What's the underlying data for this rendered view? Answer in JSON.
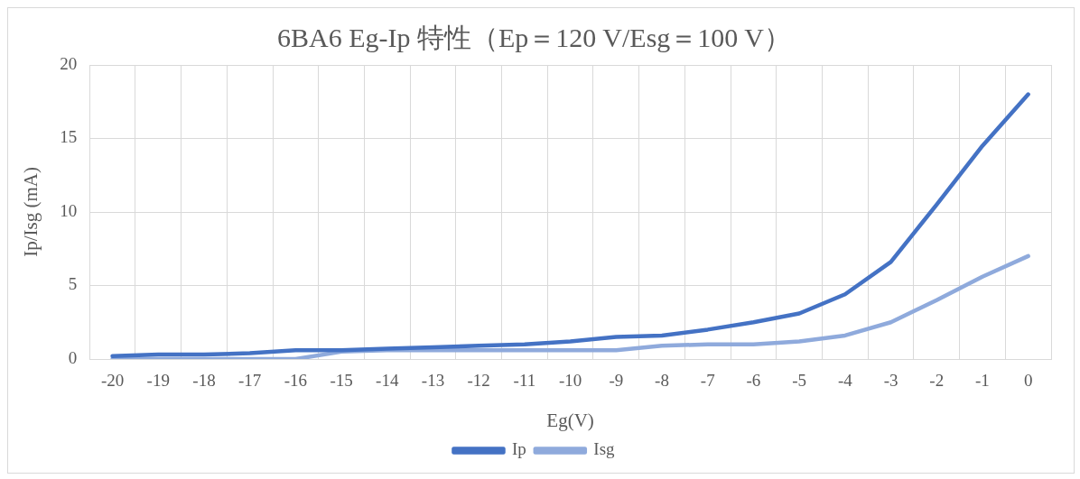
{
  "chart_data": {
    "type": "line",
    "title": "6BA6 Eg-Ip 特性（Ep＝120 V/Esg＝100 V）",
    "xlabel": "Eg(V)",
    "ylabel": "Ip/Isg (mA)",
    "categories": [
      "-20",
      "-19",
      "-18",
      "-17",
      "-16",
      "-15",
      "-14",
      "-13",
      "-12",
      "-11",
      "-10",
      "-9",
      "-8",
      "-7",
      "-6",
      "-5",
      "-4",
      "-3",
      "-2",
      "-1",
      "0"
    ],
    "series": [
      {
        "name": "Ip",
        "color": "#4472c4",
        "values": [
          0.2,
          0.3,
          0.3,
          0.4,
          0.6,
          0.6,
          0.7,
          0.8,
          0.9,
          1.0,
          1.2,
          1.5,
          1.6,
          2.0,
          2.5,
          3.1,
          4.4,
          6.6,
          10.5,
          14.5,
          18.0
        ]
      },
      {
        "name": "Isg",
        "color": "#8faadc",
        "values": [
          0,
          0,
          0,
          0,
          0,
          0.5,
          0.6,
          0.6,
          0.6,
          0.6,
          0.6,
          0.6,
          0.9,
          1.0,
          1.0,
          1.2,
          1.6,
          2.5,
          4.0,
          5.6,
          7.0
        ]
      }
    ],
    "ylim": [
      0,
      20
    ],
    "yticks": [
      0,
      5,
      10,
      15,
      20
    ],
    "grid": true,
    "legend": "bottom",
    "marker": "none",
    "line_style": "solid"
  }
}
